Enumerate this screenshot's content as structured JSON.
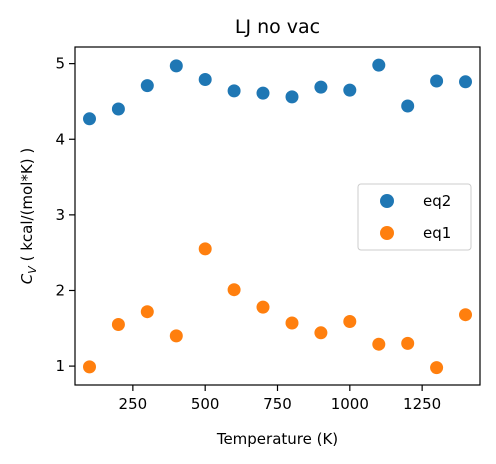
{
  "chart_data": {
    "type": "scatter",
    "title": "LJ no vac",
    "xlabel": "Temperature (K)",
    "ylabel": {
      "var": "C",
      "sub": "V",
      "rest": " ( kcal/(mol*K) )"
    },
    "xlim": [
      50,
      1450
    ],
    "ylim": [
      0.75,
      5.22
    ],
    "xticks": [
      250,
      500,
      750,
      1000,
      1250
    ],
    "yticks": [
      1,
      2,
      3,
      4,
      5
    ],
    "grid": false,
    "legend_position": "center-right",
    "series": [
      {
        "name": "eq2",
        "color": "#1f77b4",
        "x": [
          100,
          200,
          300,
          400,
          500,
          600,
          700,
          800,
          900,
          1000,
          1100,
          1200,
          1300,
          1400
        ],
        "y": [
          4.27,
          4.4,
          4.71,
          4.97,
          4.79,
          4.64,
          4.61,
          4.56,
          4.69,
          4.65,
          4.98,
          4.44,
          4.77,
          4.76
        ]
      },
      {
        "name": "eq1",
        "color": "#ff7f0e",
        "x": [
          100,
          200,
          300,
          400,
          500,
          600,
          700,
          800,
          900,
          1000,
          1100,
          1200,
          1300,
          1400
        ],
        "y": [
          0.99,
          1.55,
          1.72,
          1.4,
          2.55,
          2.01,
          1.78,
          1.57,
          1.44,
          1.59,
          1.29,
          1.3,
          0.98,
          1.68
        ]
      }
    ]
  }
}
